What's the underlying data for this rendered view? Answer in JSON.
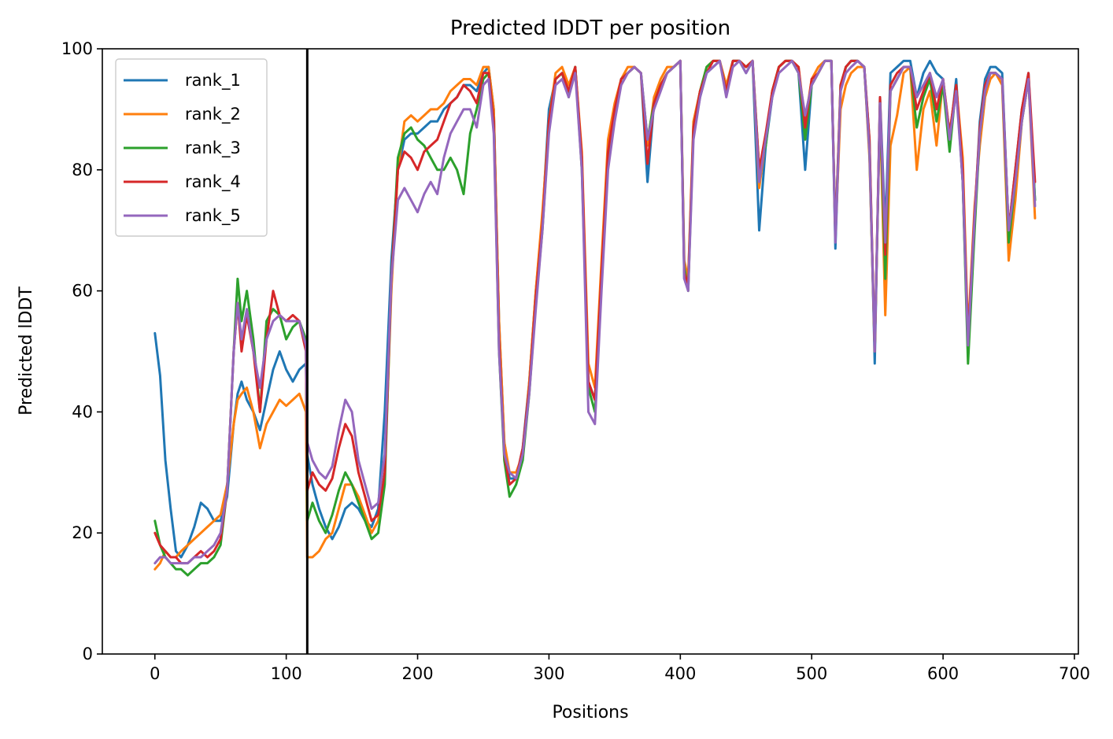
{
  "chart_data": {
    "type": "line",
    "title": "Predicted lDDT per position",
    "xlabel": "Positions",
    "ylabel": "Predicted lDDT",
    "xlim": [
      -40,
      703
    ],
    "ylim": [
      0,
      100
    ],
    "xticks": [
      0,
      100,
      200,
      300,
      400,
      500,
      600,
      700
    ],
    "yticks": [
      0,
      20,
      40,
      60,
      80,
      100
    ],
    "vline_x": 116,
    "legend_position": "upper-left",
    "grid": false,
    "x": [
      0,
      4,
      8,
      12,
      16,
      20,
      25,
      30,
      35,
      40,
      45,
      50,
      55,
      60,
      63,
      66,
      70,
      75,
      80,
      85,
      90,
      95,
      100,
      105,
      110,
      115,
      116,
      120,
      125,
      130,
      135,
      140,
      145,
      150,
      155,
      160,
      165,
      170,
      175,
      180,
      185,
      190,
      195,
      200,
      205,
      210,
      215,
      220,
      225,
      230,
      235,
      240,
      245,
      250,
      254,
      258,
      262,
      266,
      270,
      275,
      280,
      285,
      290,
      295,
      300,
      305,
      310,
      315,
      320,
      325,
      330,
      335,
      340,
      345,
      350,
      355,
      360,
      365,
      370,
      375,
      380,
      385,
      390,
      395,
      400,
      403,
      406,
      410,
      415,
      420,
      425,
      430,
      435,
      440,
      445,
      450,
      455,
      460,
      465,
      470,
      475,
      480,
      485,
      490,
      495,
      500,
      505,
      510,
      515,
      518,
      522,
      526,
      530,
      535,
      540,
      544,
      548,
      552,
      556,
      560,
      565,
      570,
      575,
      580,
      585,
      590,
      595,
      600,
      605,
      610,
      615,
      619,
      624,
      628,
      632,
      636,
      640,
      645,
      650,
      655,
      660,
      665,
      670
    ],
    "series": [
      {
        "name": "rank_1",
        "color": "#1f77b4",
        "values": [
          53,
          46,
          32,
          24,
          17,
          16,
          18,
          21,
          25,
          24,
          22,
          22,
          26,
          38,
          43,
          45,
          42,
          40,
          37,
          42,
          47,
          50,
          47,
          45,
          47,
          48,
          33,
          28,
          24,
          21,
          19,
          21,
          24,
          25,
          24,
          22,
          21,
          24,
          40,
          65,
          80,
          85,
          86,
          86,
          87,
          88,
          88,
          90,
          91,
          92,
          94,
          94,
          93,
          96,
          97,
          90,
          55,
          35,
          29,
          29,
          34,
          45,
          60,
          72,
          90,
          95,
          96,
          93,
          97,
          82,
          45,
          42,
          63,
          83,
          90,
          95,
          96,
          97,
          96,
          78,
          91,
          94,
          96,
          97,
          98,
          62,
          62,
          86,
          92,
          96,
          97,
          98,
          93,
          98,
          98,
          96,
          98,
          70,
          84,
          92,
          97,
          98,
          98,
          96,
          80,
          94,
          96,
          98,
          98,
          67,
          93,
          97,
          98,
          98,
          97,
          85,
          48,
          92,
          70,
          96,
          97,
          98,
          98,
          92,
          96,
          98,
          96,
          95,
          85,
          95,
          78,
          50,
          72,
          88,
          95,
          97,
          97,
          96,
          70,
          80,
          90,
          96,
          75
        ]
      },
      {
        "name": "rank_2",
        "color": "#ff7f0e",
        "values": [
          14,
          15,
          17,
          16,
          16,
          17,
          18,
          19,
          20,
          21,
          22,
          23,
          28,
          38,
          42,
          43,
          44,
          40,
          34,
          38,
          40,
          42,
          41,
          42,
          43,
          40,
          16,
          16,
          17,
          19,
          20,
          24,
          28,
          28,
          26,
          23,
          20,
          22,
          30,
          60,
          80,
          88,
          89,
          88,
          89,
          90,
          90,
          91,
          93,
          94,
          95,
          95,
          94,
          97,
          97,
          90,
          55,
          35,
          30,
          30,
          33,
          45,
          60,
          73,
          88,
          96,
          97,
          94,
          97,
          83,
          48,
          44,
          65,
          85,
          91,
          95,
          97,
          97,
          96,
          84,
          92,
          95,
          97,
          97,
          98,
          65,
          62,
          88,
          93,
          97,
          98,
          98,
          94,
          98,
          98,
          97,
          98,
          77,
          85,
          93,
          97,
          98,
          98,
          97,
          88,
          95,
          97,
          98,
          98,
          69,
          90,
          94,
          96,
          97,
          97,
          82,
          50,
          90,
          56,
          84,
          89,
          96,
          97,
          80,
          90,
          93,
          84,
          95,
          86,
          94,
          82,
          53,
          74,
          84,
          92,
          95,
          96,
          94,
          65,
          75,
          88,
          95,
          72
        ]
      },
      {
        "name": "rank_3",
        "color": "#2ca02c",
        "values": [
          22,
          18,
          16,
          15,
          14,
          14,
          13,
          14,
          15,
          15,
          16,
          18,
          27,
          50,
          62,
          55,
          60,
          52,
          40,
          55,
          57,
          56,
          52,
          54,
          55,
          52,
          22,
          25,
          22,
          20,
          23,
          27,
          30,
          28,
          25,
          22,
          19,
          20,
          28,
          62,
          82,
          86,
          87,
          85,
          84,
          82,
          80,
          80,
          82,
          80,
          76,
          86,
          90,
          95,
          96,
          88,
          50,
          32,
          26,
          28,
          32,
          43,
          58,
          70,
          87,
          95,
          96,
          92,
          97,
          80,
          44,
          40,
          62,
          82,
          89,
          95,
          96,
          97,
          96,
          85,
          91,
          94,
          96,
          97,
          98,
          64,
          60,
          87,
          93,
          97,
          98,
          98,
          93,
          98,
          98,
          97,
          98,
          80,
          84,
          93,
          97,
          98,
          98,
          96,
          85,
          94,
          96,
          98,
          98,
          69,
          94,
          97,
          98,
          98,
          97,
          83,
          50,
          91,
          62,
          93,
          95,
          97,
          97,
          87,
          92,
          95,
          88,
          94,
          83,
          94,
          78,
          48,
          70,
          86,
          93,
          96,
          96,
          95,
          68,
          78,
          88,
          95,
          75
        ]
      },
      {
        "name": "rank_4",
        "color": "#d62728",
        "values": [
          20,
          18,
          17,
          16,
          16,
          15,
          15,
          16,
          17,
          16,
          17,
          19,
          27,
          50,
          58,
          50,
          56,
          50,
          40,
          52,
          60,
          56,
          55,
          56,
          55,
          50,
          27,
          30,
          28,
          27,
          29,
          34,
          38,
          36,
          30,
          26,
          22,
          23,
          30,
          62,
          80,
          83,
          82,
          80,
          83,
          84,
          85,
          88,
          91,
          92,
          94,
          93,
          91,
          96,
          96,
          88,
          52,
          33,
          28,
          29,
          34,
          44,
          59,
          71,
          88,
          95,
          96,
          93,
          97,
          82,
          45,
          42,
          63,
          83,
          90,
          95,
          96,
          97,
          96,
          81,
          91,
          94,
          96,
          97,
          98,
          63,
          61,
          87,
          93,
          96,
          98,
          98,
          93,
          98,
          98,
          97,
          98,
          80,
          86,
          93,
          97,
          98,
          98,
          97,
          87,
          95,
          96,
          98,
          98,
          69,
          94,
          97,
          98,
          98,
          97,
          85,
          50,
          92,
          66,
          94,
          96,
          97,
          97,
          90,
          93,
          96,
          90,
          95,
          86,
          94,
          80,
          52,
          73,
          87,
          94,
          96,
          96,
          95,
          70,
          80,
          90,
          96,
          78
        ]
      },
      {
        "name": "rank_5",
        "color": "#9467bd",
        "values": [
          15,
          16,
          16,
          15,
          15,
          15,
          15,
          16,
          16,
          17,
          18,
          20,
          27,
          50,
          58,
          52,
          57,
          50,
          44,
          52,
          55,
          56,
          55,
          55,
          55,
          51,
          35,
          32,
          30,
          29,
          31,
          37,
          42,
          40,
          32,
          28,
          24,
          25,
          33,
          62,
          75,
          77,
          75,
          73,
          76,
          78,
          76,
          82,
          86,
          88,
          90,
          90,
          87,
          94,
          95,
          86,
          50,
          33,
          30,
          29,
          33,
          43,
          57,
          70,
          86,
          94,
          95,
          92,
          96,
          80,
          40,
          38,
          60,
          80,
          88,
          94,
          96,
          97,
          96,
          85,
          90,
          93,
          96,
          97,
          98,
          62,
          60,
          85,
          92,
          96,
          97,
          98,
          92,
          97,
          98,
          96,
          98,
          78,
          85,
          92,
          96,
          97,
          98,
          96,
          89,
          94,
          96,
          98,
          98,
          68,
          93,
          96,
          97,
          98,
          97,
          83,
          50,
          91,
          68,
          93,
          95,
          97,
          97,
          92,
          94,
          96,
          92,
          95,
          85,
          93,
          78,
          51,
          72,
          86,
          93,
          96,
          96,
          95,
          70,
          78,
          88,
          95,
          74
        ]
      }
    ]
  }
}
